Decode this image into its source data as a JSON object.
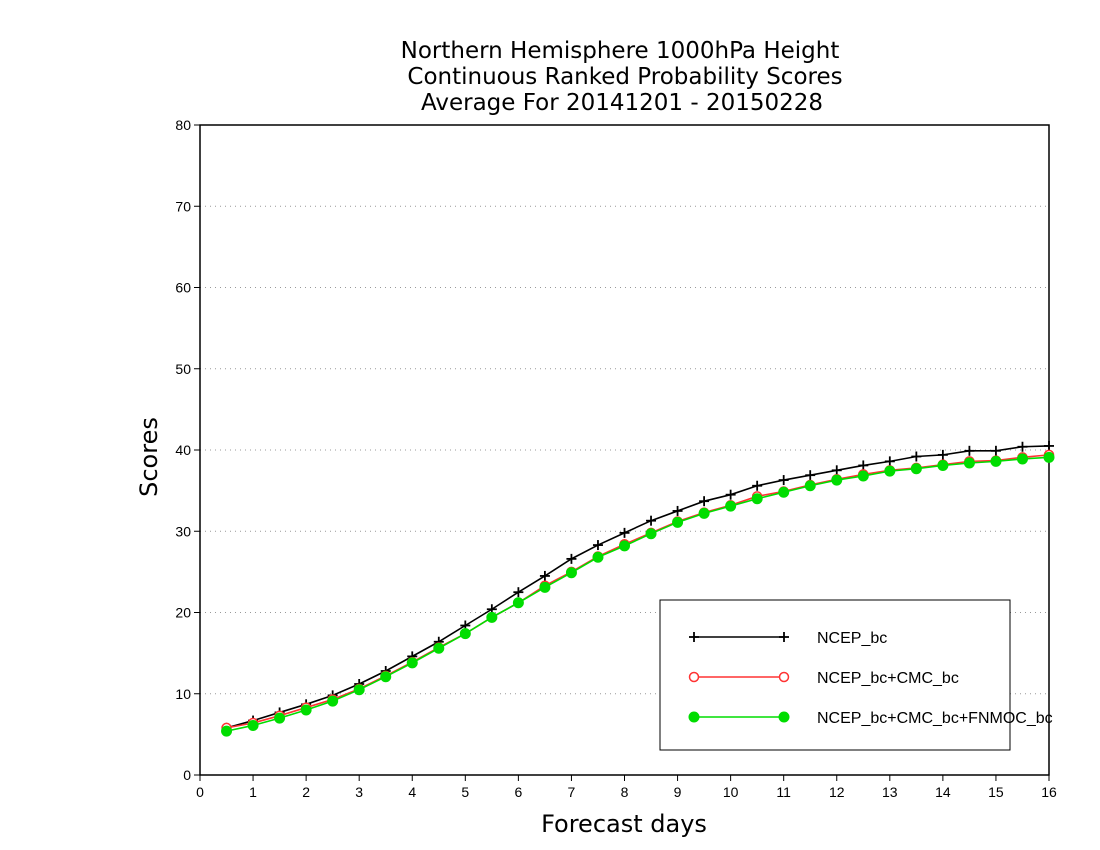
{
  "chart_data": {
    "type": "line",
    "title": [
      "Northern Hemisphere 1000hPa Height",
      "Continuous Ranked Probability Scores",
      "Average For 20141201 - 20150228"
    ],
    "xlabel": "Forecast days",
    "ylabel": "Scores",
    "xlim": [
      0,
      16
    ],
    "ylim": [
      0,
      80
    ],
    "x_ticks": [
      0,
      1,
      2,
      3,
      4,
      5,
      6,
      7,
      8,
      9,
      10,
      11,
      12,
      13,
      14,
      15,
      16
    ],
    "y_ticks": [
      0,
      10,
      20,
      30,
      40,
      50,
      60,
      70,
      80
    ],
    "grid": "horizontal dotted",
    "legend_position": "bottom-right",
    "x": [
      0.5,
      1,
      1.5,
      2,
      2.5,
      3,
      3.5,
      4,
      4.5,
      5,
      5.5,
      6,
      6.5,
      7,
      7.5,
      8,
      8.5,
      9,
      9.5,
      10,
      10.5,
      11,
      11.5,
      12,
      12.5,
      13,
      13.5,
      14,
      14.5,
      15,
      15.5,
      16
    ],
    "series": [
      {
        "name": "NCEP_bc",
        "color": "#000000",
        "marker": "plus",
        "values": [
          5.8,
          6.7,
          7.7,
          8.7,
          9.8,
          11.2,
          12.8,
          14.6,
          16.4,
          18.4,
          20.4,
          22.5,
          24.5,
          26.6,
          28.3,
          29.8,
          31.3,
          32.5,
          33.7,
          34.5,
          35.6,
          36.3,
          36.9,
          37.5,
          38.1,
          38.6,
          39.2,
          39.4,
          39.9,
          39.9,
          40.4,
          40.5
        ]
      },
      {
        "name": "NCEP_bc+CMC_bc",
        "color": "#ff3333",
        "marker": "open-circle",
        "values": [
          5.8,
          6.4,
          7.3,
          8.3,
          9.3,
          10.6,
          12.2,
          13.9,
          15.7,
          17.4,
          19.4,
          21.2,
          23.3,
          25.0,
          26.9,
          28.4,
          29.8,
          31.2,
          32.3,
          33.2,
          34.3,
          34.9,
          35.7,
          36.4,
          37.0,
          37.5,
          37.8,
          38.2,
          38.6,
          38.7,
          39.1,
          39.4
        ]
      },
      {
        "name": "NCEP_bc+CMC_bc+FNMOC_bc",
        "color": "#00dd00",
        "marker": "filled-circle",
        "values": [
          5.4,
          6.1,
          7.0,
          8.0,
          9.1,
          10.5,
          12.1,
          13.8,
          15.6,
          17.4,
          19.4,
          21.2,
          23.1,
          24.9,
          26.8,
          28.2,
          29.7,
          31.1,
          32.2,
          33.1,
          34.0,
          34.8,
          35.6,
          36.3,
          36.8,
          37.4,
          37.7,
          38.1,
          38.4,
          38.6,
          38.9,
          39.1
        ]
      }
    ]
  }
}
